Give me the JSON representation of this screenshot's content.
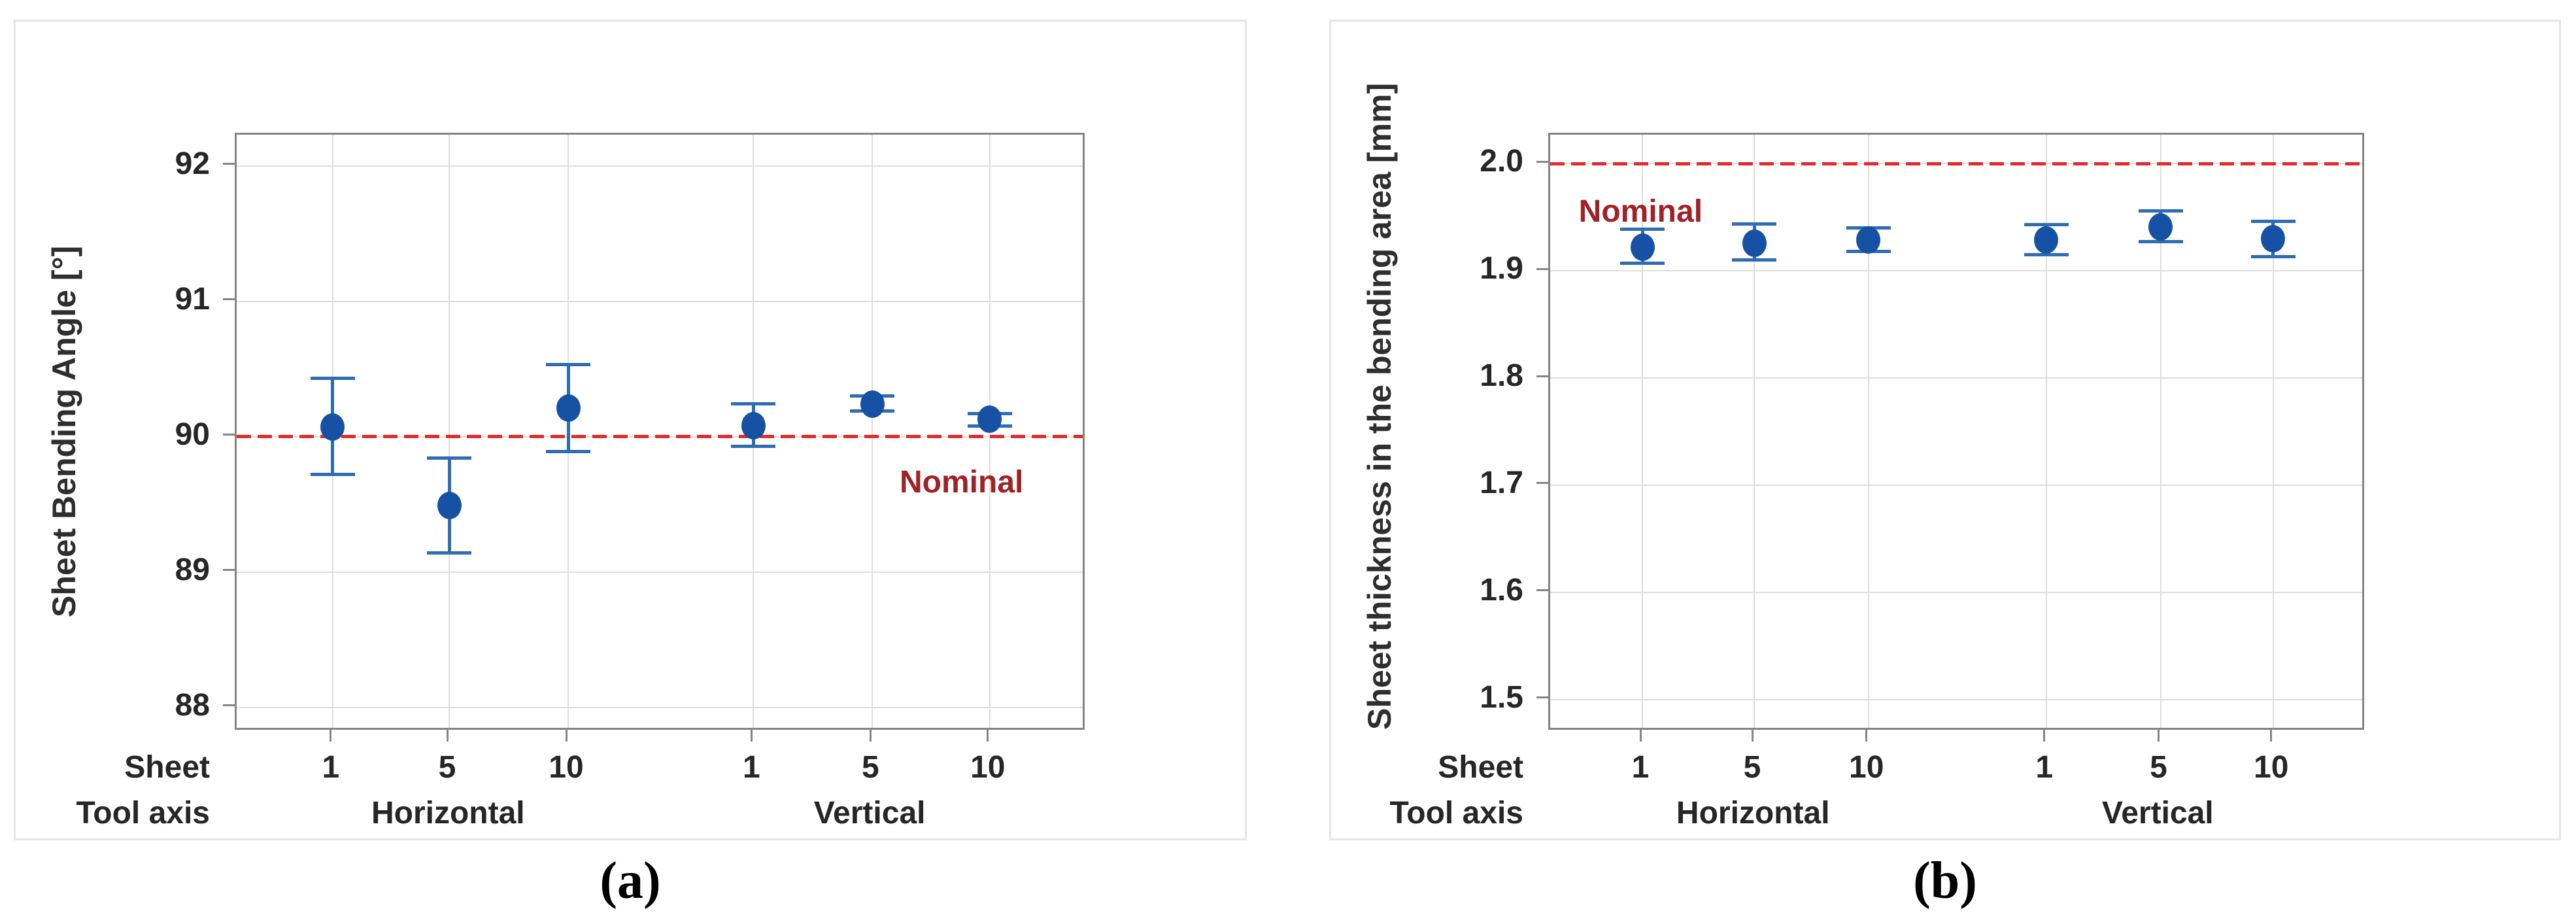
{
  "figure": {
    "background": "#FFFFFF",
    "captions": [
      "(a)",
      "(b)"
    ]
  },
  "colors": {
    "marker_blue": "#1651A3",
    "errorbar_blue": "#2E6DB4",
    "nominal_line_red": "#E7292B",
    "nominal_text_red": "#9F2227",
    "axis_text": "#262626",
    "axis_title_text": "#2E2E2E",
    "plot_border": "#858585",
    "panel_border": "#E5E5E5",
    "gridline": "#DEDEDE",
    "tick_mark": "#858585"
  },
  "chart_data": [
    {
      "type": "scatter",
      "caption": "(a)",
      "title": "",
      "ylabel": "Sheet Bending Angle [°]",
      "ylim": [
        87.82,
        92.23
      ],
      "grid": true,
      "legend": "none",
      "yticks": [
        {
          "value": 92,
          "label": "92"
        },
        {
          "value": 91,
          "label": "91"
        },
        {
          "value": 90,
          "label": "90"
        },
        {
          "value": 89,
          "label": "89"
        },
        {
          "value": 88,
          "label": "88"
        }
      ],
      "nominal": {
        "value": 90,
        "label": "Nominal"
      },
      "x_axis": {
        "row1_label": "Sheet",
        "row2_label": "Tool axis",
        "sheet_ticks": [
          "1",
          "5",
          "10",
          "1",
          "5",
          "10"
        ],
        "groups": [
          {
            "label": "Horizontal"
          },
          {
            "label": "Vertical"
          }
        ]
      },
      "points": [
        {
          "tool_axis": "Horizontal",
          "sheet": "1",
          "mean": 90.07,
          "ci_low": 89.72,
          "ci_high": 90.43
        },
        {
          "tool_axis": "Horizontal",
          "sheet": "5",
          "mean": 89.49,
          "ci_low": 89.14,
          "ci_high": 89.84
        },
        {
          "tool_axis": "Horizontal",
          "sheet": "10",
          "mean": 90.21,
          "ci_low": 89.89,
          "ci_high": 90.53
        },
        {
          "tool_axis": "Vertical",
          "sheet": "1",
          "mean": 90.08,
          "ci_low": 89.93,
          "ci_high": 90.24
        },
        {
          "tool_axis": "Vertical",
          "sheet": "5",
          "mean": 90.24,
          "ci_low": 90.19,
          "ci_high": 90.3
        },
        {
          "tool_axis": "Vertical",
          "sheet": "10",
          "mean": 90.13,
          "ci_low": 90.08,
          "ci_high": 90.17
        }
      ]
    },
    {
      "type": "scatter",
      "caption": "(b)",
      "title": "",
      "ylabel": "Sheet thickness in the bending area [mm]",
      "ylim": [
        1.47,
        2.027
      ],
      "grid": true,
      "legend": "none",
      "yticks": [
        {
          "value": 2.0,
          "label": "2.0"
        },
        {
          "value": 1.9,
          "label": "1.9"
        },
        {
          "value": 1.8,
          "label": "1.8"
        },
        {
          "value": 1.7,
          "label": "1.7"
        },
        {
          "value": 1.6,
          "label": "1.6"
        },
        {
          "value": 1.5,
          "label": "1.5"
        }
      ],
      "nominal": {
        "value": 2.0,
        "label": "Nominal"
      },
      "x_axis": {
        "row1_label": "Sheet",
        "row2_label": "Tool axis",
        "sheet_ticks": [
          "1",
          "5",
          "10",
          "1",
          "5",
          "10"
        ],
        "groups": [
          {
            "label": "Horizontal"
          },
          {
            "label": "Vertical"
          }
        ]
      },
      "points": [
        {
          "tool_axis": "Horizontal",
          "sheet": "1",
          "mean": 1.922,
          "ci_low": 1.907,
          "ci_high": 1.939
        },
        {
          "tool_axis": "Horizontal",
          "sheet": "5",
          "mean": 1.926,
          "ci_low": 1.91,
          "ci_high": 1.944
        },
        {
          "tool_axis": "Horizontal",
          "sheet": "10",
          "mean": 1.929,
          "ci_low": 1.918,
          "ci_high": 1.94
        },
        {
          "tool_axis": "Vertical",
          "sheet": "1",
          "mean": 1.929,
          "ci_low": 1.915,
          "ci_high": 1.943
        },
        {
          "tool_axis": "Vertical",
          "sheet": "5",
          "mean": 1.941,
          "ci_low": 1.927,
          "ci_high": 1.956
        },
        {
          "tool_axis": "Vertical",
          "sheet": "10",
          "mean": 1.93,
          "ci_low": 1.913,
          "ci_high": 1.946
        }
      ]
    }
  ]
}
